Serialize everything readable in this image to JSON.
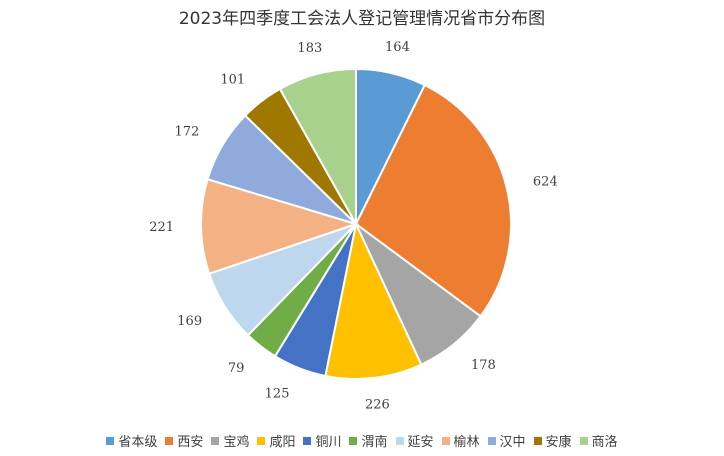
{
  "chart_data": {
    "type": "pie",
    "title": "2023年四季度工会法人登记管理情况省市分布图",
    "categories": [
      "省本级",
      "西安",
      "宝鸡",
      "咸阳",
      "铜川",
      "渭南",
      "延安",
      "榆林",
      "汉中",
      "安康",
      "商洛"
    ],
    "values": [
      164,
      624,
      178,
      226,
      125,
      79,
      169,
      221,
      172,
      101,
      183
    ],
    "colors": [
      "#5B9BD5",
      "#ED7D31",
      "#A5A5A5",
      "#FFC000",
      "#4472C4",
      "#70AD47",
      "#BDD7EE",
      "#F4B183",
      "#8FAADC",
      "#9E7800",
      "#A9D18E"
    ],
    "data_labels": [
      "164",
      "624",
      "178",
      "226",
      "125",
      "79",
      "169",
      "221",
      "172",
      "101",
      "183"
    ],
    "legend_position": "bottom",
    "start_angle": "12 o'clock",
    "direction": "clockwise"
  }
}
